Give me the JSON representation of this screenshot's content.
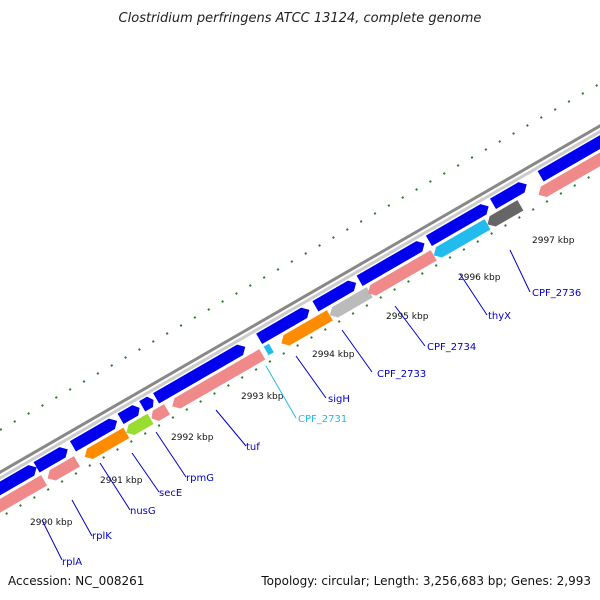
{
  "title": "Clostridium perfringens ATCC 13124, complete genome",
  "footer": {
    "accession": "Accession: NC_008261",
    "summary": "Topology: circular; Length: 3,256,683 bp; Genes: 2,993"
  },
  "colors": {
    "forward_gene": "#0000ee",
    "reverse_gene": "#f08a8a",
    "orange_gene": "#ff8c00",
    "lime_gene": "#99dd33",
    "cyan_gene": "#22bbee",
    "gray_gene": "#bbbbbb",
    "dark_gene": "#666666",
    "backbone": "#888888",
    "tick_dots": "#2a7a2a",
    "label_line": "#0000cc",
    "label_line_cyan": "#22bbee"
  },
  "kbp_labels": [
    "2990 kbp",
    "2991 kbp",
    "2992 kbp",
    "2993 kbp",
    "2994 kbp",
    "2995 kbp",
    "2996 kbp",
    "2997 kbp"
  ],
  "gene_labels": [
    {
      "name": "rplA",
      "color": "#0000cc"
    },
    {
      "name": "rplK",
      "color": "#0000cc"
    },
    {
      "name": "nusG",
      "color": "#0000cc"
    },
    {
      "name": "secE",
      "color": "#0000cc"
    },
    {
      "name": "rpmG",
      "color": "#0000cc"
    },
    {
      "name": "tuf",
      "color": "#0000cc"
    },
    {
      "name": "CPF_2731",
      "color": "#22bbee"
    },
    {
      "name": "sigH",
      "color": "#0000cc"
    },
    {
      "name": "CPF_2733",
      "color": "#0000cc"
    },
    {
      "name": "CPF_2734",
      "color": "#0000cc"
    },
    {
      "name": "thyX",
      "color": "#0000cc"
    },
    {
      "name": "CPF_2736",
      "color": "#0000cc"
    }
  ]
}
